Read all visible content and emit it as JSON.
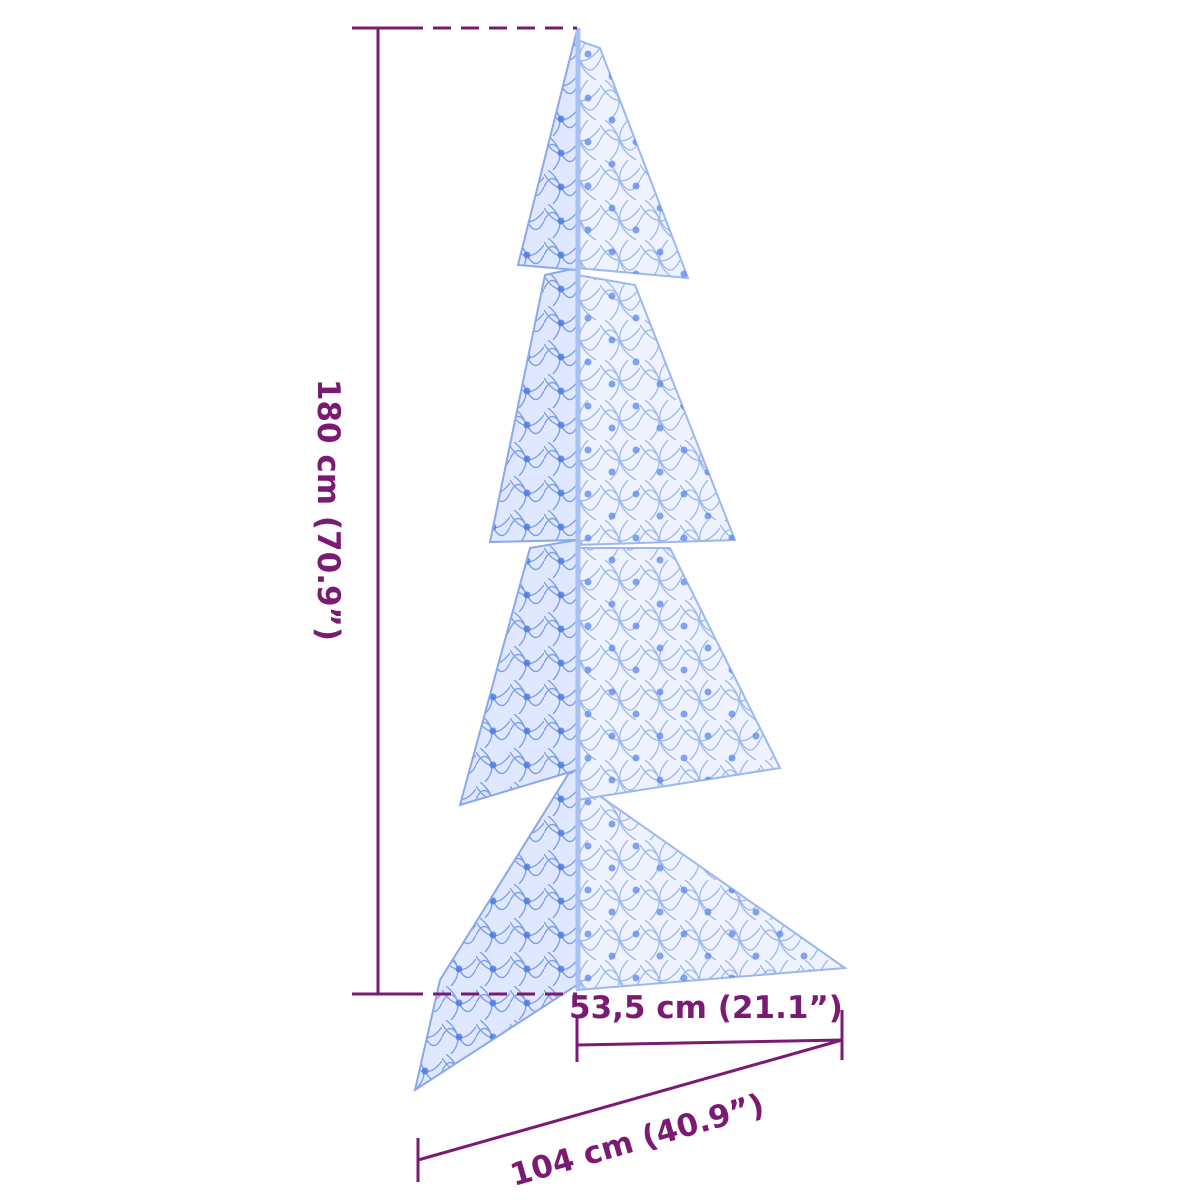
{
  "dimensions": {
    "height": "180 cm (70.9”)",
    "depth": "53,5 cm (21.1”)",
    "width": "104 cm (40.9”)"
  },
  "colors": {
    "dimension_line": "#7b1a72",
    "tree_wire": "#8fb0ee",
    "tree_light": "#3d6fe0",
    "background": "#ffffff"
  }
}
